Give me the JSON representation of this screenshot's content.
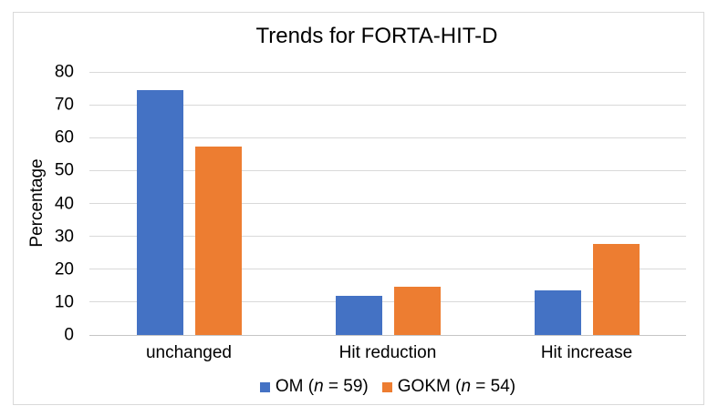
{
  "chart_data": {
    "type": "bar",
    "title": "Trends for FORTA-HIT-D",
    "xlabel": "",
    "ylabel": "Percentage",
    "categories": [
      "unchanged",
      "Hit reduction",
      "Hit increase"
    ],
    "series": [
      {
        "key": "om",
        "name": "OM (n = 59)",
        "color": "#4472C4",
        "values": [
          74.6,
          11.9,
          13.6
        ]
      },
      {
        "key": "gokm",
        "name": "GOKM (n = 54)",
        "color": "#ED7D31",
        "values": [
          57.4,
          14.8,
          27.8
        ]
      }
    ],
    "ylim": [
      0,
      80
    ],
    "ytick_step": 10,
    "grid": true,
    "legend_position": "bottom",
    "colors": {
      "gridline": "#D9D9D9",
      "axis_line": "#C6C6C6",
      "frame_border": "#D9D9D9",
      "text": "#000000",
      "background": "#FFFFFF"
    }
  }
}
